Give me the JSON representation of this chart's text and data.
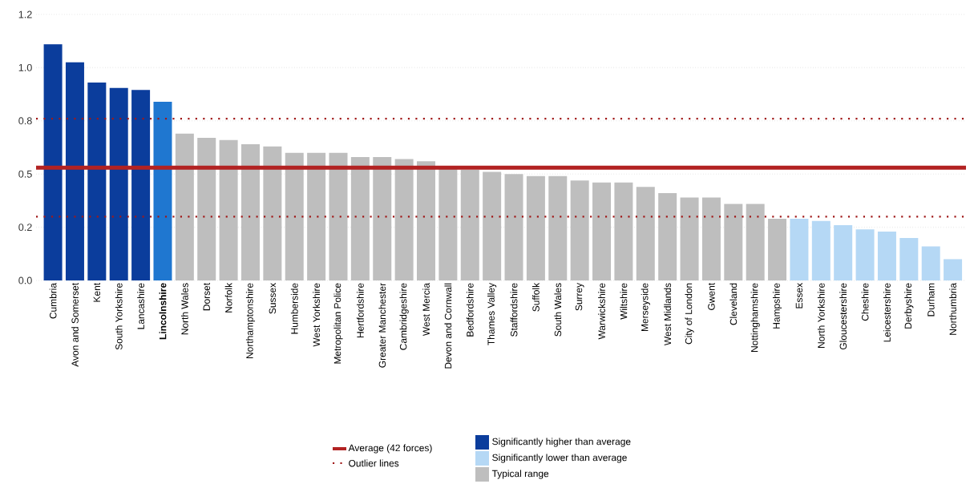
{
  "chart_data": {
    "type": "bar",
    "categories": [
      "Cumbria",
      "Avon and Somerset",
      "Kent",
      "South Yorkshire",
      "Lancashire",
      "**Lincolnshire**",
      "North Wales",
      "Dorset",
      "Norfolk",
      "Northamptonshire",
      "Sussex",
      "Humberside",
      "West Yorkshire",
      "Metropolitan Police",
      "Hertfordshire",
      "Greater Manchester",
      "Cambridgeshire",
      "West Mercia",
      "Devon and Cornwall",
      "Bedfordshire",
      "Thames Valley",
      "Staffordshire",
      "Suffolk",
      "South Wales",
      "Surrey",
      "Warwickshire",
      "Wiltshire",
      "Merseyside",
      "West Midlands",
      "City of London",
      "Gwent",
      "Cleveland",
      "Nottinghamshire",
      "Hampshire",
      "Essex",
      "North Yorkshire",
      "Gloucestershire",
      "Cheshire",
      "Leicestershire",
      "Derbyshire",
      "Durham",
      "Northumbria"
    ],
    "series": [
      {
        "name": "Significantly higher than average",
        "color": "#0b3d9c",
        "values": [
          1.11,
          1.025,
          0.93,
          0.905,
          0.895,
          null,
          null,
          null,
          null,
          null,
          null,
          null,
          null,
          null,
          null,
          null,
          null,
          null,
          null,
          null,
          null,
          null,
          null,
          null,
          null,
          null,
          null,
          null,
          null,
          null,
          null,
          null,
          null,
          null,
          null,
          null,
          null,
          null,
          null,
          null,
          null,
          null
        ]
      },
      {
        "name": "Significantly lower than average",
        "color": "#b5d8f5",
        "values": [
          null,
          null,
          null,
          null,
          null,
          null,
          null,
          null,
          null,
          null,
          null,
          null,
          null,
          null,
          null,
          null,
          null,
          null,
          null,
          null,
          null,
          null,
          null,
          null,
          null,
          null,
          null,
          null,
          null,
          null,
          null,
          null,
          null,
          null,
          0.29,
          0.28,
          0.26,
          0.24,
          0.23,
          0.2,
          0.16,
          0.1
        ]
      },
      {
        "name": "Typical range",
        "color": "#bebebe",
        "values": [
          null,
          null,
          null,
          null,
          null,
          null,
          0.69,
          0.67,
          0.66,
          0.64,
          0.63,
          0.6,
          0.6,
          0.6,
          0.58,
          0.58,
          0.57,
          0.56,
          0.53,
          0.52,
          0.51,
          0.5,
          0.49,
          0.49,
          0.47,
          0.46,
          0.46,
          0.44,
          0.41,
          0.39,
          0.39,
          0.36,
          0.36,
          0.29,
          null,
          null,
          null,
          null,
          null,
          null,
          null,
          null
        ]
      },
      {
        "color": "#1f77d0",
        "values": [
          null,
          null,
          null,
          null,
          null,
          0.84,
          null,
          null,
          null,
          null,
          null,
          null,
          null,
          null,
          null,
          null,
          null,
          null,
          null,
          null,
          null,
          null,
          null,
          null,
          null,
          null,
          null,
          null,
          null,
          null,
          null,
          null,
          null,
          null,
          null,
          null,
          null,
          null,
          null,
          null,
          null,
          null
        ]
      }
    ],
    "ylim": [
      0,
      1.25
    ],
    "yticks": [
      {
        "value": 0,
        "label": "0.0"
      },
      {
        "value": 0.25,
        "label": "0.2"
      },
      {
        "value": 0.5,
        "label": "0.5"
      },
      {
        "value": 0.75,
        "label": "0.8"
      },
      {
        "value": 1.0,
        "label": "1.0"
      },
      {
        "value": 1.25,
        "label": "1.2"
      }
    ],
    "ref_lines": [
      {
        "axis": "y",
        "value": 0.53,
        "label": "Average (42 forces)",
        "color": "#b22222",
        "line_style": "solid"
      },
      {
        "axis": "y",
        "value": 0.76,
        "label": "Outlier lines",
        "color": "#a01818",
        "line_style": "dotted"
      },
      {
        "axis": "y",
        "value": 0.3,
        "color": "#a01818",
        "line_style": "dotted"
      }
    ],
    "grid": "y",
    "legend": "bottom"
  }
}
